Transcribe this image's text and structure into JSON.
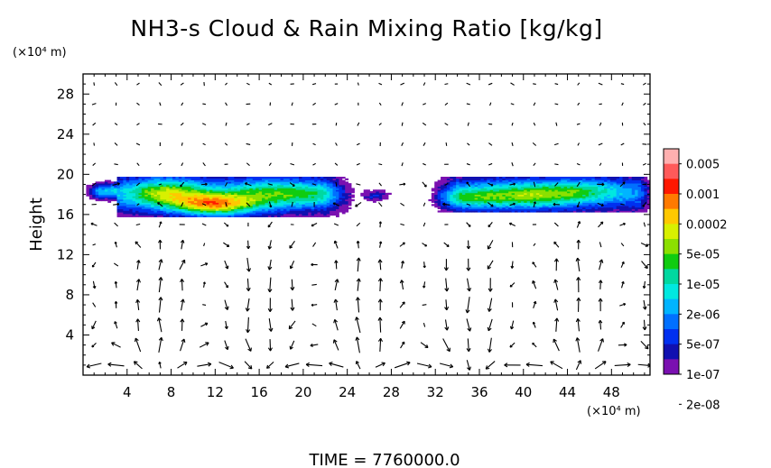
{
  "chart_data": {
    "type": "heatmap",
    "title": "NH3-s Cloud & Rain Mixing Ratio [kg/kg]",
    "xlabel": "",
    "ylabel": "Height",
    "x_unit": "(×10⁴ m)",
    "y_unit": "(×10⁴ m)",
    "xlim": [
      0,
      51.5
    ],
    "ylim": [
      0,
      30
    ],
    "x_ticks": [
      "4",
      "8",
      "12",
      "16",
      "20",
      "24",
      "28",
      "32",
      "36",
      "40",
      "44",
      "48"
    ],
    "y_ticks": [
      "4",
      "8",
      "12",
      "16",
      "20",
      "24",
      "28"
    ],
    "footer": "TIME = 7760000.0",
    "colorbar": {
      "labels": [
        "0.005",
        "0.001",
        "0.0002",
        "5e-05",
        "1e-05",
        "2e-06",
        "5e-07",
        "1e-07",
        "2e-08"
      ],
      "colors": [
        "#ffb0b0",
        "#ff5a5a",
        "#ff1800",
        "#ff7a00",
        "#ffc800",
        "#d8f000",
        "#8ce000",
        "#10cc10",
        "#00d8a0",
        "#00e8e0",
        "#00b4ff",
        "#0070ff",
        "#0030f0",
        "#1010b0",
        "#7a10b0"
      ]
    },
    "cloud_regions": [
      {
        "name": "left band",
        "x_range": [
          0,
          25
        ],
        "y_range": [
          16,
          19.5
        ],
        "peak_value": 0.001,
        "peak_x": [
          10,
          14
        ],
        "peak_y": [
          16.5,
          17.5
        ]
      },
      {
        "name": "right band",
        "x_range": [
          31.5,
          51.5
        ],
        "y_range": [
          16.5,
          19.5
        ],
        "peak_value": 5e-05,
        "peak_x": [
          38,
          43
        ],
        "peak_y": [
          17.5,
          18.5
        ]
      }
    ],
    "vector_field": {
      "description": "wind velocity vectors",
      "x_spacing": 2,
      "y_spacing": 2
    }
  }
}
